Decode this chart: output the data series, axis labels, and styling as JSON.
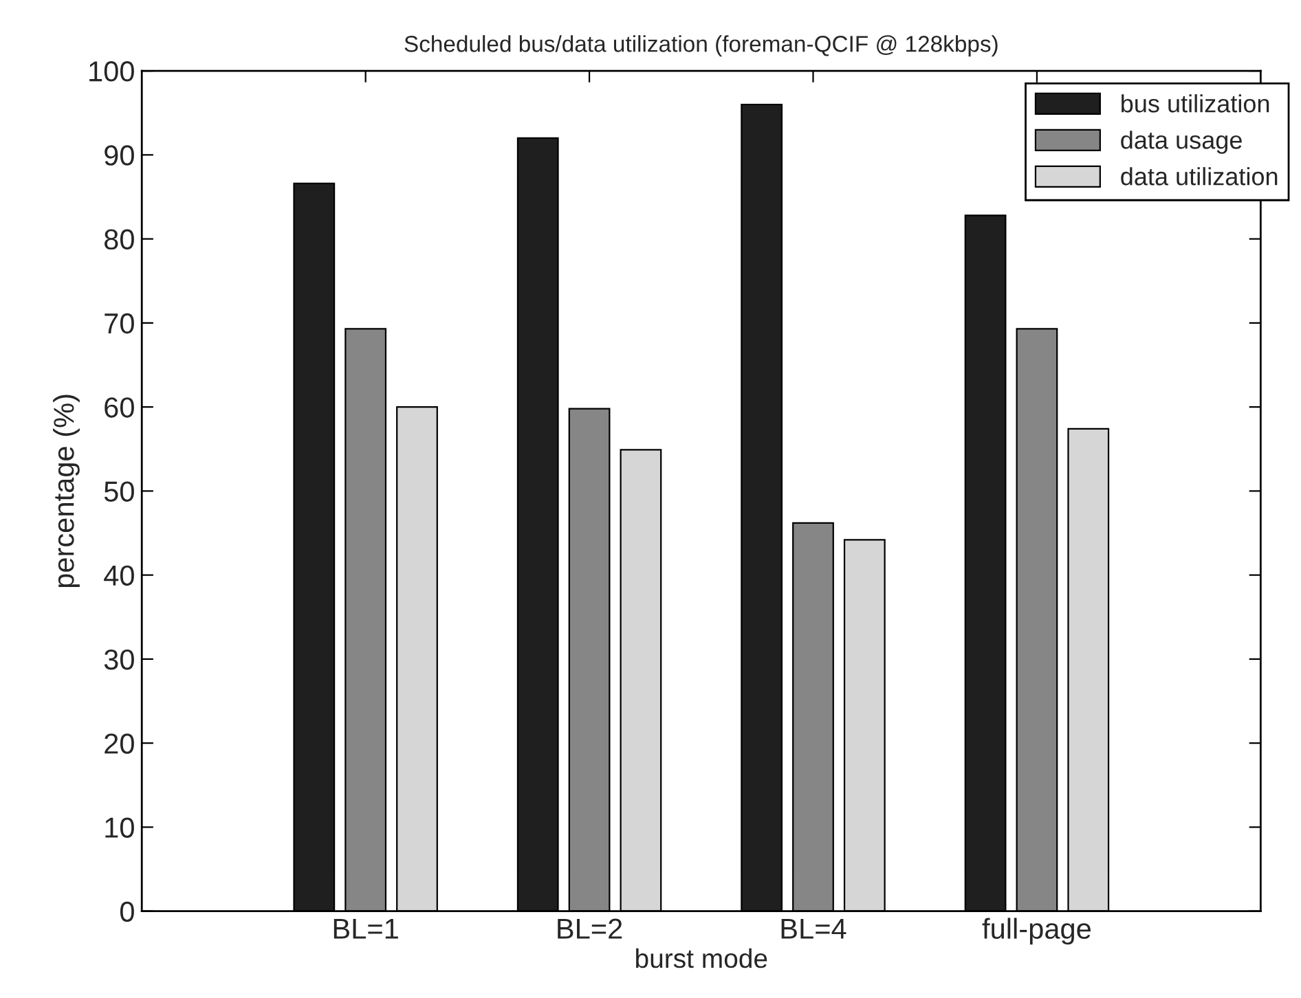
{
  "chart_data": {
    "type": "bar",
    "title": "Scheduled bus/data utilization (foreman-QCIF @ 128kbps)",
    "xlabel": "burst mode",
    "ylabel": "percentage (%)",
    "categories": [
      "BL=1",
      "BL=2",
      "BL=4",
      "full-page"
    ],
    "series": [
      {
        "name": "bus utilization",
        "color": "#1f1f1f",
        "values": [
          86.6,
          92.0,
          96.0,
          82.8
        ]
      },
      {
        "name": "data usage",
        "color": "#868686",
        "values": [
          69.3,
          59.8,
          46.2,
          69.3
        ]
      },
      {
        "name": "data utilization",
        "color": "#d6d6d6",
        "values": [
          60.0,
          54.9,
          44.2,
          57.4
        ]
      }
    ],
    "ylim": [
      0,
      100
    ],
    "yticks": [
      0,
      10,
      20,
      30,
      40,
      50,
      60,
      70,
      80,
      90,
      100
    ],
    "grid": false,
    "legend": "top right"
  }
}
